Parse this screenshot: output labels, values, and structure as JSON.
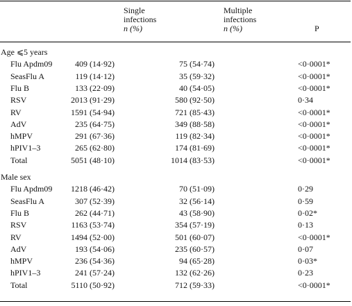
{
  "header": {
    "single": [
      "Single",
      "infections"
    ],
    "multi": [
      "Multiple",
      "infections"
    ],
    "pct": "n (%)",
    "p": "P"
  },
  "sections": [
    {
      "title": "Age ⩽5 years",
      "rows": [
        {
          "label": "Flu Apdm09",
          "single": "409 (14·92)",
          "multi": "75 (54·74)",
          "p": "<0·0001*"
        },
        {
          "label": "SeasFlu A",
          "single": "119 (14·12)",
          "multi": "35 (59·32)",
          "p": "<0·0001*"
        },
        {
          "label": "Flu B",
          "single": "133 (22·09)",
          "multi": "40 (54·05)",
          "p": "<0·0001*"
        },
        {
          "label": "RSV",
          "single": "2013 (91·29)",
          "multi": "580 (92·50)",
          "p": "0·34"
        },
        {
          "label": "RV",
          "single": "1591 (54·94)",
          "multi": "721 (85·43)",
          "p": "<0·0001*"
        },
        {
          "label": "AdV",
          "single": "235 (64·75)",
          "multi": "349 (88·58)",
          "p": "<0·0001*"
        },
        {
          "label": "hMPV",
          "single": "291 (67·36)",
          "multi": "119 (82·34)",
          "p": "<0·0001*"
        },
        {
          "label": "hPIV1–3",
          "single": "265 (62·80)",
          "multi": "174 (81·69)",
          "p": "<0·0001*"
        },
        {
          "label": "Total",
          "single": "5051 (48·10)",
          "multi": "1014 (83·53)",
          "p": "<0·0001*"
        }
      ]
    },
    {
      "title": "Male sex",
      "rows": [
        {
          "label": "Flu Apdm09",
          "single": "1218 (46·42)",
          "multi": "70 (51·09)",
          "p": "0·29"
        },
        {
          "label": "SeasFlu A",
          "single": "307 (52·39)",
          "multi": "32 (56·14)",
          "p": "0·59"
        },
        {
          "label": "Flu B",
          "single": "262 (44·71)",
          "multi": "43 (58·90)",
          "p": "0·02*"
        },
        {
          "label": "RSV",
          "single": "1163 (53·74)",
          "multi": "354 (57·19)",
          "p": "0·13"
        },
        {
          "label": "RV",
          "single": "1494 (52·00)",
          "multi": "501 (60·07)",
          "p": "<0·0001*"
        },
        {
          "label": "AdV",
          "single": "193 (54·06)",
          "multi": "235 (60·57)",
          "p": "0·07"
        },
        {
          "label": "hMPV",
          "single": "236 (54·36)",
          "multi": "94 (65·28)",
          "p": "0·03*"
        },
        {
          "label": "hPIV1–3",
          "single": "241 (57·24)",
          "multi": "132 (62·26)",
          "p": "0·23"
        },
        {
          "label": "Total",
          "single": "5110 (50·92)",
          "multi": "712 (59·33)",
          "p": "<0·0001*"
        }
      ]
    }
  ]
}
